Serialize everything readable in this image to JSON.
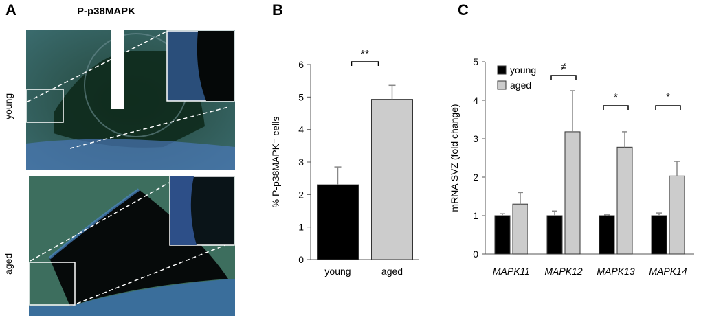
{
  "panels": {
    "a": {
      "letter": "A",
      "title": "P-p38MAPK",
      "rows": [
        "young",
        "aged"
      ]
    },
    "b": {
      "letter": "B"
    },
    "c": {
      "letter": "C"
    }
  },
  "chart_data": [
    {
      "type": "bar",
      "categories": [
        "young",
        "aged"
      ],
      "values": [
        2.3,
        4.93
      ],
      "errors": [
        0.55,
        0.43
      ],
      "colors": [
        "#000000",
        "#cccccc"
      ],
      "ylabel": "% P-p38MAPK⁺ cells",
      "ylim": [
        0,
        6
      ],
      "yticks": [
        0,
        1,
        2,
        3,
        4,
        5,
        6
      ],
      "significance": [
        {
          "from": 0,
          "to": 1,
          "label": "**"
        }
      ]
    },
    {
      "type": "bar",
      "categories": [
        "MAPK11",
        "MAPK12",
        "MAPK13",
        "MAPK14"
      ],
      "series": [
        {
          "name": "young",
          "color": "#000000",
          "values": [
            1.0,
            1.0,
            1.0,
            1.0
          ],
          "errors": [
            0.05,
            0.12,
            0.02,
            0.07
          ]
        },
        {
          "name": "aged",
          "color": "#cccccc",
          "values": [
            1.3,
            3.18,
            2.78,
            2.03
          ],
          "errors": [
            0.3,
            1.07,
            0.4,
            0.38
          ]
        }
      ],
      "ylabel": "mRNA SVZ (fold change)",
      "ylim": [
        0,
        5
      ],
      "yticks": [
        0,
        1,
        2,
        3,
        4,
        5
      ],
      "legend": "top-left",
      "significance": [
        {
          "category": 1,
          "label": "≠"
        },
        {
          "category": 2,
          "label": "*"
        },
        {
          "category": 3,
          "label": "*"
        }
      ]
    }
  ]
}
